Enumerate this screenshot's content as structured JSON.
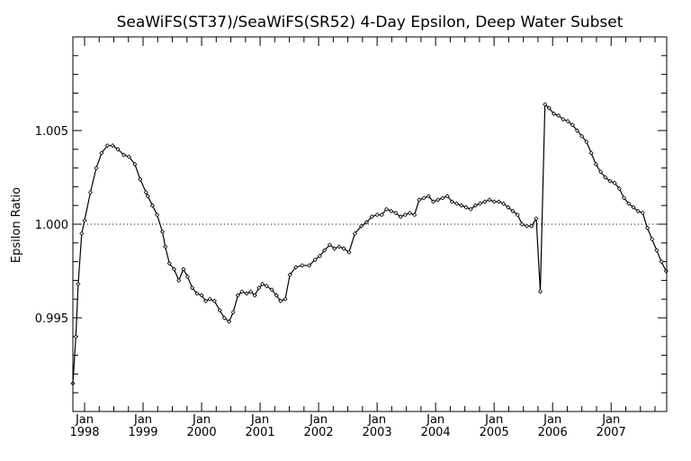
{
  "chart_data": {
    "type": "line",
    "title": "SeaWiFS(ST37)/SeaWiFS(SR52) 4-Day Epsilon, Deep Water Subset",
    "xlabel": "",
    "ylabel": "Epsilon Ratio",
    "xlim": [
      1997.8,
      2007.95
    ],
    "ylim": [
      0.99,
      1.01
    ],
    "reference_line": {
      "y": 1.0,
      "style": "dotted"
    },
    "x_ticks": [
      {
        "x": 1998.0,
        "month": "Jan",
        "year": "1998"
      },
      {
        "x": 1999.0,
        "month": "Jan",
        "year": "1999"
      },
      {
        "x": 2000.0,
        "month": "Jan",
        "year": "2000"
      },
      {
        "x": 2001.0,
        "month": "Jan",
        "year": "2001"
      },
      {
        "x": 2002.0,
        "month": "Jan",
        "year": "2002"
      },
      {
        "x": 2003.0,
        "month": "Jan",
        "year": "2003"
      },
      {
        "x": 2004.0,
        "month": "Jan",
        "year": "2004"
      },
      {
        "x": 2005.0,
        "month": "Jan",
        "year": "2005"
      },
      {
        "x": 2006.0,
        "month": "Jan",
        "year": "2006"
      },
      {
        "x": 2007.0,
        "month": "Jan",
        "year": "2007"
      }
    ],
    "y_ticks": [
      {
        "value": 0.995,
        "label": "0.995"
      },
      {
        "value": 1.0,
        "label": "1.000"
      },
      {
        "value": 1.005,
        "label": "1.005"
      }
    ],
    "series": [
      {
        "points": [
          [
            1997.8,
            0.9915
          ],
          [
            1997.85,
            0.994
          ],
          [
            1997.89,
            0.9968
          ],
          [
            1997.95,
            0.9995
          ],
          [
            1998.0,
            1.0002
          ],
          [
            1998.1,
            1.0017
          ],
          [
            1998.2,
            1.003
          ],
          [
            1998.29,
            1.0038
          ],
          [
            1998.39,
            1.0042
          ],
          [
            1998.48,
            1.0042
          ],
          [
            1998.57,
            1.004
          ],
          [
            1998.67,
            1.0037
          ],
          [
            1998.76,
            1.0036
          ],
          [
            1998.86,
            1.0032
          ],
          [
            1998.95,
            1.0024
          ],
          [
            1999.05,
            1.0017
          ],
          [
            1999.08,
            1.0015
          ],
          [
            1999.16,
            1.001
          ],
          [
            1999.24,
            1.0005
          ],
          [
            1999.33,
            0.9996
          ],
          [
            1999.38,
            0.9988
          ],
          [
            1999.45,
            0.9979
          ],
          [
            1999.53,
            0.9976
          ],
          [
            1999.61,
            0.997
          ],
          [
            1999.69,
            0.9976
          ],
          [
            1999.76,
            0.9972
          ],
          [
            1999.84,
            0.9966
          ],
          [
            1999.92,
            0.9963
          ],
          [
            2000.0,
            0.9962
          ],
          [
            2000.07,
            0.9959
          ],
          [
            2000.14,
            0.996
          ],
          [
            2000.22,
            0.9959
          ],
          [
            2000.31,
            0.9954
          ],
          [
            2000.39,
            0.995
          ],
          [
            2000.47,
            0.9948
          ],
          [
            2000.54,
            0.9953
          ],
          [
            2000.62,
            0.9962
          ],
          [
            2000.69,
            0.9964
          ],
          [
            2000.77,
            0.9963
          ],
          [
            2000.84,
            0.9964
          ],
          [
            2000.91,
            0.9962
          ],
          [
            2000.98,
            0.9966
          ],
          [
            2001.04,
            0.9968
          ],
          [
            2001.11,
            0.9967
          ],
          [
            2001.2,
            0.9965
          ],
          [
            2001.28,
            0.9962
          ],
          [
            2001.35,
            0.9959
          ],
          [
            2001.43,
            0.996
          ],
          [
            2001.51,
            0.9973
          ],
          [
            2001.61,
            0.9977
          ],
          [
            2001.72,
            0.9978
          ],
          [
            2001.84,
            0.9978
          ],
          [
            2001.94,
            0.9981
          ],
          [
            2002.02,
            0.9983
          ],
          [
            2002.1,
            0.9986
          ],
          [
            2002.19,
            0.9989
          ],
          [
            2002.27,
            0.9987
          ],
          [
            2002.35,
            0.9988
          ],
          [
            2002.43,
            0.9987
          ],
          [
            2002.52,
            0.9985
          ],
          [
            2002.62,
            0.9995
          ],
          [
            2002.73,
            0.9999
          ],
          [
            2002.82,
            1.0001
          ],
          [
            2002.91,
            1.0004
          ],
          [
            2003.0,
            1.0005
          ],
          [
            2003.08,
            1.0005
          ],
          [
            2003.16,
            1.0008
          ],
          [
            2003.24,
            1.0007
          ],
          [
            2003.32,
            1.0006
          ],
          [
            2003.4,
            1.0004
          ],
          [
            2003.48,
            1.0005
          ],
          [
            2003.56,
            1.0006
          ],
          [
            2003.64,
            1.0005
          ],
          [
            2003.72,
            1.0013
          ],
          [
            2003.8,
            1.0014
          ],
          [
            2003.88,
            1.0015
          ],
          [
            2003.96,
            1.0012
          ],
          [
            2004.04,
            1.0013
          ],
          [
            2004.12,
            1.0014
          ],
          [
            2004.2,
            1.0015
          ],
          [
            2004.28,
            1.0012
          ],
          [
            2004.36,
            1.0011
          ],
          [
            2004.44,
            1.001
          ],
          [
            2004.52,
            1.0009
          ],
          [
            2004.6,
            1.0008
          ],
          [
            2004.68,
            1.001
          ],
          [
            2004.76,
            1.0011
          ],
          [
            2004.84,
            1.0012
          ],
          [
            2004.92,
            1.0013
          ],
          [
            2005.0,
            1.0012
          ],
          [
            2005.08,
            1.0012
          ],
          [
            2005.16,
            1.0011
          ],
          [
            2005.24,
            1.0009
          ],
          [
            2005.32,
            1.0007
          ],
          [
            2005.4,
            1.0005
          ],
          [
            2005.48,
            1.0
          ],
          [
            2005.56,
            0.9999
          ],
          [
            2005.64,
            0.9999
          ],
          [
            2005.72,
            1.0003
          ],
          [
            2005.79,
            0.9964
          ],
          [
            2005.87,
            1.0064
          ],
          [
            2005.94,
            1.0062
          ],
          [
            2006.02,
            1.0059
          ],
          [
            2006.1,
            1.0058
          ],
          [
            2006.18,
            1.0056
          ],
          [
            2006.26,
            1.0055
          ],
          [
            2006.34,
            1.0053
          ],
          [
            2006.42,
            1.005
          ],
          [
            2006.5,
            1.0047
          ],
          [
            2006.58,
            1.0044
          ],
          [
            2006.66,
            1.0038
          ],
          [
            2006.74,
            1.0032
          ],
          [
            2006.82,
            1.0028
          ],
          [
            2006.9,
            1.0025
          ],
          [
            2006.98,
            1.0023
          ],
          [
            2007.06,
            1.0022
          ],
          [
            2007.14,
            1.0019
          ],
          [
            2007.22,
            1.0014
          ],
          [
            2007.3,
            1.0011
          ],
          [
            2007.38,
            1.0009
          ],
          [
            2007.46,
            1.0007
          ],
          [
            2007.54,
            1.0006
          ],
          [
            2007.62,
            0.9998
          ],
          [
            2007.7,
            0.9992
          ],
          [
            2007.78,
            0.9986
          ],
          [
            2007.86,
            0.998
          ],
          [
            2007.94,
            0.9975
          ]
        ]
      }
    ]
  }
}
